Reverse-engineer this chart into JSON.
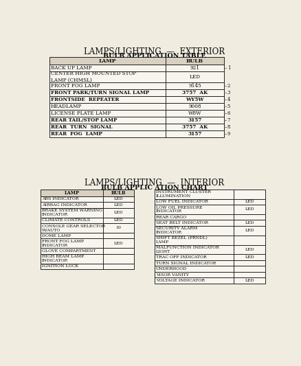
{
  "title_exterior": "LAMPS/LIGHTING  —  EXTERIOR",
  "subtitle_exterior": "BULB APPLICATION TABLE",
  "exterior_headers": [
    "LAMP",
    "BULB"
  ],
  "exterior_rows": [
    [
      "BACK UP LAMP",
      "921"
    ],
    [
      "CENTER HIGH MOUNTED STOP\nLAMP (CHMSL)",
      "LED"
    ],
    [
      "FRONT FOG LAMP",
      "9145"
    ],
    [
      "FRONT PARK/TURN SIGNAL LAMP",
      "3757  AK"
    ],
    [
      "FRONTSIDE  REPEATER",
      "WY5W"
    ],
    [
      "HEADLAMP",
      "9008"
    ],
    [
      "LICENSE PLATE LAMP",
      "W8W"
    ],
    [
      "REAR TAIL/STOP LAMP",
      "3157"
    ],
    [
      "REAR  TURN  SIGNAL",
      "3757  AK"
    ],
    [
      "REAR  FOG  LAMP",
      "3157"
    ]
  ],
  "exterior_bold_rows": [
    3,
    4,
    7,
    8,
    9
  ],
  "exterior_numbers": [
    "1",
    "",
    "2",
    "3",
    "4",
    "5",
    "6",
    "7",
    "8",
    "9"
  ],
  "title_interior": "LAMPS/LIGHTING  —  INTERIOR",
  "subtitle_interior": "BULB APPLIC ATION CHART",
  "interior_left_headers": [
    "LAMP",
    "BULB"
  ],
  "interior_left_rows": [
    [
      "ABS INDICATOR",
      "LED"
    ],
    [
      "AIRBAG INDICATOR",
      "LED"
    ],
    [
      "BRAKE SYSTEM WARNING\nINDICATOR",
      "LED"
    ],
    [
      "CLIMATE CONTROLS",
      "LED"
    ],
    [
      "CONSOLE GEAR SELECTOR\nW/AUTO",
      "10"
    ],
    [
      "DOME LAMP",
      ""
    ],
    [
      "FRONT FOG LAMP\nINDICATOR",
      "LED"
    ],
    [
      "GLOVE COMPARTMENT",
      ""
    ],
    [
      "HIGH BEAM LAMP\nINDICATOR",
      ""
    ],
    [
      "IGNITION LOCK",
      ""
    ]
  ],
  "interior_right_rows": [
    [
      "INSTRUMENT CLUSTER\nILLUMINATION",
      ""
    ],
    [
      "LOW FUEL INDICATOR",
      "LED"
    ],
    [
      "LOW OIL PRESSURE\nINDICATOR",
      "LED"
    ],
    [
      "REAR CARGO",
      ""
    ],
    [
      "SEAT BELT INDICATOR",
      "LED"
    ],
    [
      "SECURITY ALARM\nINDICATOR",
      "LED"
    ],
    [
      "SHIFT BEZEL (PRNDL)\nLAMP",
      ""
    ],
    [
      "MALFUNCTION INDICATOR\nLIGHT",
      "LED"
    ],
    [
      "TRAC OFF INDICATOR",
      "LED"
    ],
    [
      "TURN SIGNAL INDICATOR",
      ""
    ],
    [
      "UNDERHOOD",
      ""
    ],
    [
      "VISOR VANITY",
      ""
    ],
    [
      "VOLTAGE INDICATOR",
      "LED"
    ]
  ],
  "bg_color": "#f0ece0",
  "header_bg": "#d8d0c0",
  "row_bg": "#f8f5ee",
  "line_color": "#222222",
  "text_color": "#111111"
}
